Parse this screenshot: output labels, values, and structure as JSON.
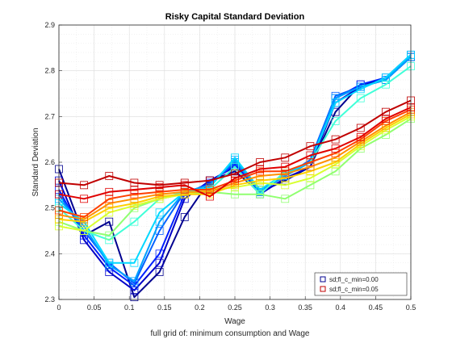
{
  "chart_data": {
    "type": "line",
    "title": "Risky Capital Standard Deviation",
    "xlabel": "Wage",
    "ylabel": "Standard Deviation",
    "caption": "full grid of: minimum consumption and Wage",
    "xlim": [
      0,
      0.5
    ],
    "ylim": [
      2.3,
      2.9
    ],
    "xticks": [
      "0",
      "0.05",
      "0.1",
      "0.15",
      "0.2",
      "0.25",
      "0.3",
      "0.35",
      "0.4",
      "0.45",
      "0.5"
    ],
    "yticks": [
      "2.3",
      "2.4",
      "2.5",
      "2.6",
      "2.7",
      "2.8",
      "2.9"
    ],
    "grid": true,
    "legend_position": "bottom-right",
    "legend": [
      {
        "label": "sd;fl_c_min=0.00",
        "color": "#00008f"
      },
      {
        "label": "sd;fl_c_min=0.05",
        "color": "#c00000"
      }
    ],
    "x": [
      0,
      0.0357,
      0.0714,
      0.1071,
      0.1429,
      0.1786,
      0.2143,
      0.25,
      0.2857,
      0.3214,
      0.3571,
      0.3929,
      0.4286,
      0.4643,
      0.5
    ],
    "series": [
      {
        "color": "#00008f",
        "values": [
          2.585,
          2.44,
          2.47,
          2.305,
          2.36,
          2.48,
          2.56,
          2.58,
          2.535,
          2.56,
          2.59,
          2.71,
          2.77,
          2.78,
          2.83
        ]
      },
      {
        "color": "#0000c8",
        "values": [
          2.56,
          2.43,
          2.36,
          2.32,
          2.38,
          2.52,
          2.56,
          2.59,
          2.53,
          2.565,
          2.59,
          2.73,
          2.765,
          2.78,
          2.83
        ]
      },
      {
        "color": "#0020ff",
        "values": [
          2.54,
          2.44,
          2.37,
          2.33,
          2.4,
          2.53,
          2.555,
          2.595,
          2.535,
          2.57,
          2.6,
          2.74,
          2.77,
          2.785,
          2.835
        ]
      },
      {
        "color": "#0060ff",
        "values": [
          2.53,
          2.45,
          2.38,
          2.335,
          2.45,
          2.535,
          2.55,
          2.6,
          2.54,
          2.57,
          2.605,
          2.745,
          2.765,
          2.78,
          2.83
        ]
      },
      {
        "color": "#00a0ff",
        "values": [
          2.52,
          2.46,
          2.375,
          2.34,
          2.47,
          2.535,
          2.55,
          2.605,
          2.535,
          2.57,
          2.6,
          2.74,
          2.765,
          2.78,
          2.83
        ]
      },
      {
        "color": "#00d8ff",
        "values": [
          2.51,
          2.47,
          2.38,
          2.38,
          2.49,
          2.535,
          2.545,
          2.61,
          2.54,
          2.575,
          2.6,
          2.73,
          2.76,
          2.785,
          2.835
        ]
      },
      {
        "color": "#40ffd8",
        "values": [
          2.5,
          2.45,
          2.43,
          2.47,
          2.52,
          2.535,
          2.54,
          2.59,
          2.53,
          2.58,
          2.6,
          2.69,
          2.74,
          2.77,
          2.81
        ]
      },
      {
        "color": "#90ff70",
        "values": [
          2.47,
          2.45,
          2.44,
          2.5,
          2.52,
          2.53,
          2.535,
          2.53,
          2.53,
          2.52,
          2.55,
          2.58,
          2.63,
          2.66,
          2.695
        ]
      },
      {
        "color": "#d8ff30",
        "values": [
          2.46,
          2.45,
          2.49,
          2.505,
          2.52,
          2.53,
          2.54,
          2.545,
          2.555,
          2.55,
          2.565,
          2.595,
          2.635,
          2.67,
          2.7
        ]
      },
      {
        "color": "#ffd000",
        "values": [
          2.475,
          2.47,
          2.5,
          2.51,
          2.525,
          2.53,
          2.53,
          2.55,
          2.56,
          2.565,
          2.58,
          2.6,
          2.64,
          2.675,
          2.705
        ]
      },
      {
        "color": "#ff9000",
        "values": [
          2.485,
          2.475,
          2.51,
          2.52,
          2.53,
          2.535,
          2.535,
          2.555,
          2.57,
          2.575,
          2.59,
          2.61,
          2.645,
          2.68,
          2.71
        ]
      },
      {
        "color": "#ff4000",
        "values": [
          2.495,
          2.48,
          2.52,
          2.53,
          2.535,
          2.54,
          2.54,
          2.56,
          2.58,
          2.58,
          2.6,
          2.62,
          2.65,
          2.69,
          2.715
        ]
      },
      {
        "color": "#e00000",
        "values": [
          2.53,
          2.52,
          2.535,
          2.54,
          2.545,
          2.55,
          2.525,
          2.565,
          2.585,
          2.59,
          2.615,
          2.63,
          2.655,
          2.695,
          2.72
        ]
      },
      {
        "color": "#c00000",
        "values": [
          2.555,
          2.55,
          2.57,
          2.555,
          2.55,
          2.555,
          2.56,
          2.575,
          2.6,
          2.61,
          2.635,
          2.65,
          2.675,
          2.71,
          2.735
        ]
      }
    ]
  }
}
